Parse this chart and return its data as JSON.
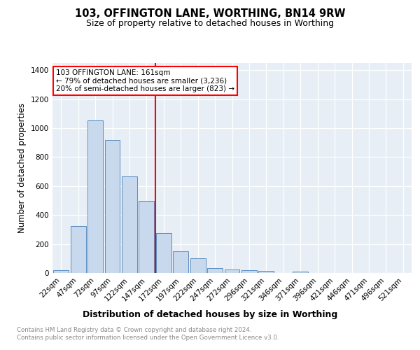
{
  "title1": "103, OFFINGTON LANE, WORTHING, BN14 9RW",
  "title2": "Size of property relative to detached houses in Worthing",
  "xlabel": "Distribution of detached houses by size in Worthing",
  "ylabel": "Number of detached properties",
  "footnote": "Contains HM Land Registry data © Crown copyright and database right 2024.\nContains public sector information licensed under the Open Government Licence v3.0.",
  "bar_labels": [
    "22sqm",
    "47sqm",
    "72sqm",
    "97sqm",
    "122sqm",
    "147sqm",
    "172sqm",
    "197sqm",
    "222sqm",
    "247sqm",
    "272sqm",
    "296sqm",
    "321sqm",
    "346sqm",
    "371sqm",
    "396sqm",
    "421sqm",
    "446sqm",
    "471sqm",
    "496sqm",
    "521sqm"
  ],
  "bar_values": [
    20,
    325,
    1055,
    920,
    665,
    500,
    275,
    150,
    100,
    35,
    22,
    20,
    15,
    0,
    12,
    0,
    0,
    0,
    0,
    0,
    0
  ],
  "bar_color": "#c9d9ed",
  "bar_edgecolor": "#5b8dc0",
  "grid_color": "#d0d8e8",
  "bg_color": "#e8eef5",
  "annotation_line_color": "red",
  "annotation_text_line1": "103 OFFINGTON LANE: 161sqm",
  "annotation_text_line2": "← 79% of detached houses are smaller (3,236)",
  "annotation_text_line3": "20% of semi-detached houses are larger (823) →",
  "annotation_box_color": "white",
  "annotation_box_edgecolor": "red",
  "ylim": [
    0,
    1450
  ],
  "yticks": [
    0,
    200,
    400,
    600,
    800,
    1000,
    1200,
    1400
  ],
  "footnote_color": "#888888",
  "title1_fontsize": 10.5,
  "title2_fontsize": 9.0,
  "ylabel_fontsize": 8.5,
  "xlabel_fontsize": 9.0,
  "tick_fontsize": 7.5,
  "annotation_fontsize": 7.5,
  "footnote_fontsize": 6.2
}
